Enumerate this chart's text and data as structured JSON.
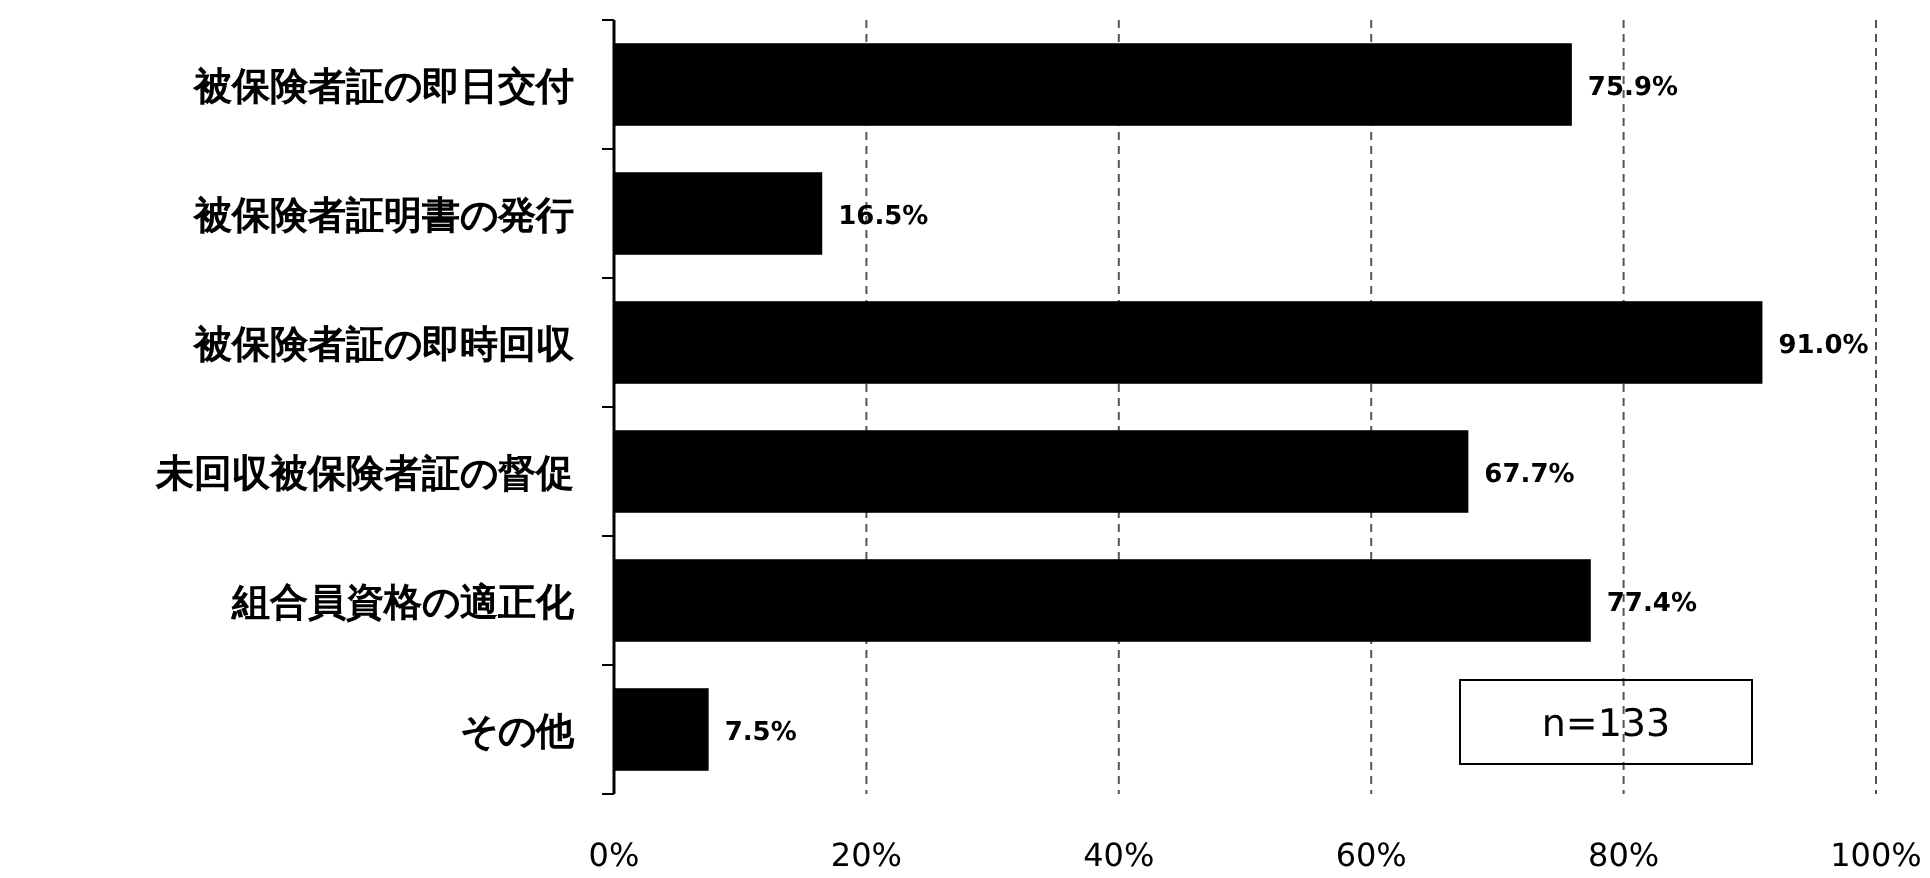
{
  "chart_data": {
    "type": "bar",
    "orientation": "horizontal",
    "categories": [
      "被保険者証の即日交付",
      "被保険者証明書の発行",
      "被保険者証の即時回収",
      "未回収被保険者証の督促",
      "組合員資格の適正化",
      "その他"
    ],
    "values": [
      75.9,
      16.5,
      91.0,
      67.7,
      77.4,
      7.5
    ],
    "value_labels": [
      "75.9%",
      "16.5%",
      "91.0%",
      "67.7%",
      "77.4%",
      "7.5%"
    ],
    "color": "#000000",
    "xlim": [
      0,
      100
    ],
    "xticks": [
      {
        "value": 0,
        "label": "0%"
      },
      {
        "value": 20,
        "label": "20%"
      },
      {
        "value": 40,
        "label": "40%"
      },
      {
        "value": 60,
        "label": "60%"
      },
      {
        "value": 80,
        "label": "80%"
      },
      {
        "value": 100,
        "label": "100%"
      }
    ],
    "grid": "x",
    "annotations": [
      "n=133"
    ]
  }
}
